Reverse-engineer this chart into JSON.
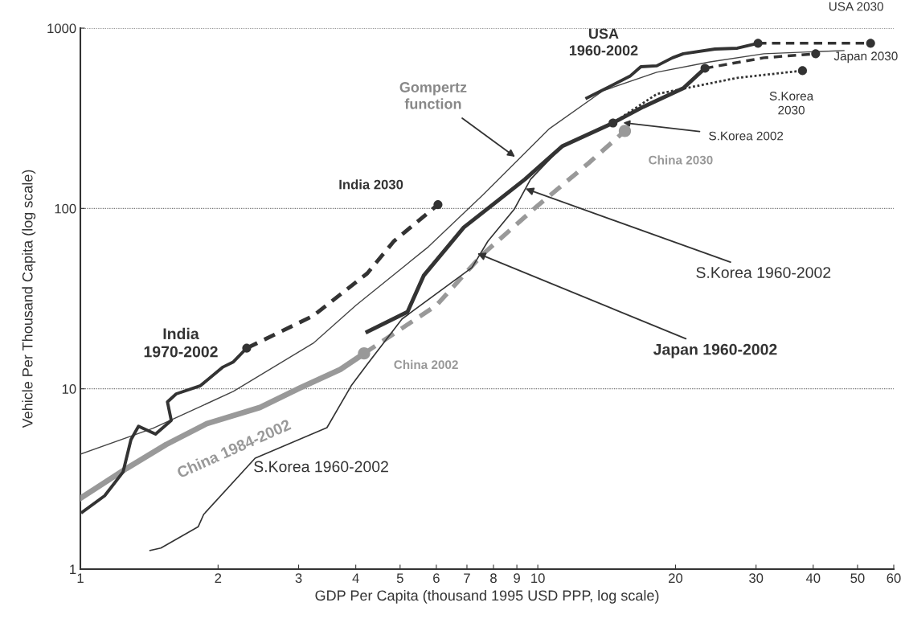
{
  "chart_data": {
    "type": "line",
    "xlabel": "GDP Per Capita (thousand 1995 USD PPP, log scale)",
    "ylabel": "Vehicle Per Thousand Capita (log scale)",
    "log": "xy",
    "grid": "y",
    "xlim": [
      1,
      60
    ],
    "ylim": [
      1,
      1000
    ],
    "xticks": [
      1,
      2,
      3,
      4,
      5,
      6,
      7,
      8,
      9,
      10,
      20,
      30,
      40,
      50,
      60
    ],
    "yticks": [
      1,
      10,
      100,
      1000
    ],
    "series": [
      {
        "type": "line",
        "color": "#444444",
        "line_style": "solid",
        "x": [
          1,
          1.44,
          2.16,
          3.23,
          4.0,
          5.77,
          7.56,
          10.6,
          13.9,
          18.2,
          23.8,
          31.2,
          46.7
        ],
        "values": [
          4.34,
          6.03,
          9.67,
          17.9,
          29,
          61.4,
          118,
          277,
          450,
          569,
          650,
          721,
          751
        ]
      },
      {
        "type": "line",
        "color": "#999999",
        "line_style": "solid",
        "x": [
          1,
          1.26,
          1.54,
          1.89,
          2.47,
          3.02,
          3.7,
          4.17
        ],
        "values": [
          2.47,
          3.61,
          4.91,
          6.41,
          7.88,
          10.1,
          12.8,
          15.7
        ]
      },
      {
        "type": "line",
        "color": "#999999",
        "line_style": "dashed",
        "x": [
          4.17,
          6.0,
          7.56,
          9.92,
          12.9,
          15.5
        ],
        "values": [
          15.7,
          29,
          55.4,
          102,
          178,
          269
        ]
      },
      {
        "type": "line",
        "color": "#333333",
        "line_style": "solid",
        "x": [
          1.42,
          1.5,
          1.81,
          1.86,
          2.41,
          3.46,
          3.91,
          4.24,
          5.05,
          7.18,
          7.78,
          8.89,
          9.64,
          11.3,
          14.6
        ],
        "values": [
          1.27,
          1.31,
          1.72,
          2.01,
          4.12,
          6.09,
          10.4,
          13.7,
          24.4,
          47,
          65.9,
          99.4,
          145,
          221,
          298
        ]
      },
      {
        "type": "line",
        "color": "#333333",
        "line_style": "dotted",
        "x": [
          14.6,
          18.2,
          27.3,
          37.9
        ],
        "values": [
          298,
          431,
          530,
          581
        ]
      },
      {
        "type": "line",
        "color": "#333333",
        "line_style": "solid",
        "x": [
          1.01,
          1.13,
          1.24,
          1.29,
          1.34,
          1.46,
          1.58,
          1.55,
          1.62,
          1.83,
          2.05,
          2.16,
          2.31
        ],
        "values": [
          2.07,
          2.55,
          3.46,
          5.22,
          6.2,
          5.61,
          6.68,
          8.46,
          9.37,
          10.4,
          13.2,
          14.1,
          16.8
        ]
      },
      {
        "type": "line",
        "color": "#333333",
        "line_style": "dashed",
        "x": [
          2.31,
          3.23,
          4.24,
          4.85,
          6.05
        ],
        "values": [
          16.8,
          25.4,
          43.7,
          66,
          105
        ]
      },
      {
        "type": "line",
        "color": "#333333",
        "line_style": "solid",
        "x": [
          4.24,
          5.19,
          5.63,
          6.89,
          9.37,
          11.3,
          14.6,
          17.0,
          20.8,
          23.2
        ],
        "values": [
          20.7,
          26.7,
          42.4,
          78.5,
          145,
          221,
          298,
          366,
          464,
          599
        ]
      },
      {
        "type": "line",
        "color": "#333333",
        "line_style": "dashed",
        "x": [
          23.2,
          31.2,
          40.5
        ],
        "values": [
          599,
          685,
          721
        ]
      },
      {
        "type": "line",
        "color": "#333333",
        "line_style": "solid",
        "x": [
          12.8,
          15.9,
          16.8,
          18.2,
          19.7,
          20.8,
          24.4,
          27.3,
          30.3
        ],
        "values": [
          410,
          541,
          611,
          618,
          685,
          721,
          766,
          774,
          824
        ]
      },
      {
        "type": "line",
        "color": "#333333",
        "line_style": "dashed",
        "x": [
          30.3,
          53.4
        ],
        "values": [
          824,
          824
        ]
      },
      {
        "type": "scatter",
        "color": "#333333",
        "marker": "circle",
        "x": [
          2.31,
          6.05,
          14.6,
          37.9,
          23.2,
          40.5,
          30.3,
          53.4
        ],
        "values": [
          16.8,
          105,
          298,
          581,
          599,
          721,
          824,
          824
        ]
      },
      {
        "type": "scatter",
        "color": "#999999",
        "marker": "circle",
        "x": [
          4.17,
          15.5
        ],
        "values": [
          15.7,
          269
        ]
      }
    ],
    "annotations": [
      {
        "text": "USA 2030",
        "x": 53.4,
        "y": 824
      },
      {
        "text": "USA\n1960-2002",
        "x": 12.8,
        "y": 410
      },
      {
        "text": "Japan 2030",
        "x": 40.5,
        "y": 721
      },
      {
        "text": "S.Korea\n2030",
        "x": 37.9,
        "y": 581
      },
      {
        "text": "Gompertz\nfunction",
        "x": 9.0,
        "y": 190
      },
      {
        "text": "S.Korea 2002",
        "x": 15.2,
        "y": 300
      },
      {
        "text": "China 2030",
        "x": 15.5,
        "y": 269
      },
      {
        "text": "India 2030",
        "x": 6.05,
        "y": 105
      },
      {
        "text": "S.Korea 1960-2002",
        "x": 9.3,
        "y": 130
      },
      {
        "text": "Japan 1960-2002",
        "x": 7.3,
        "y": 57
      },
      "India\n1970-2002",
      "China 2002",
      {
        "text": "China 1984-2002",
        "x": 2.47,
        "y": 7.88
      },
      "S.Korea 1960-2002"
    ]
  }
}
